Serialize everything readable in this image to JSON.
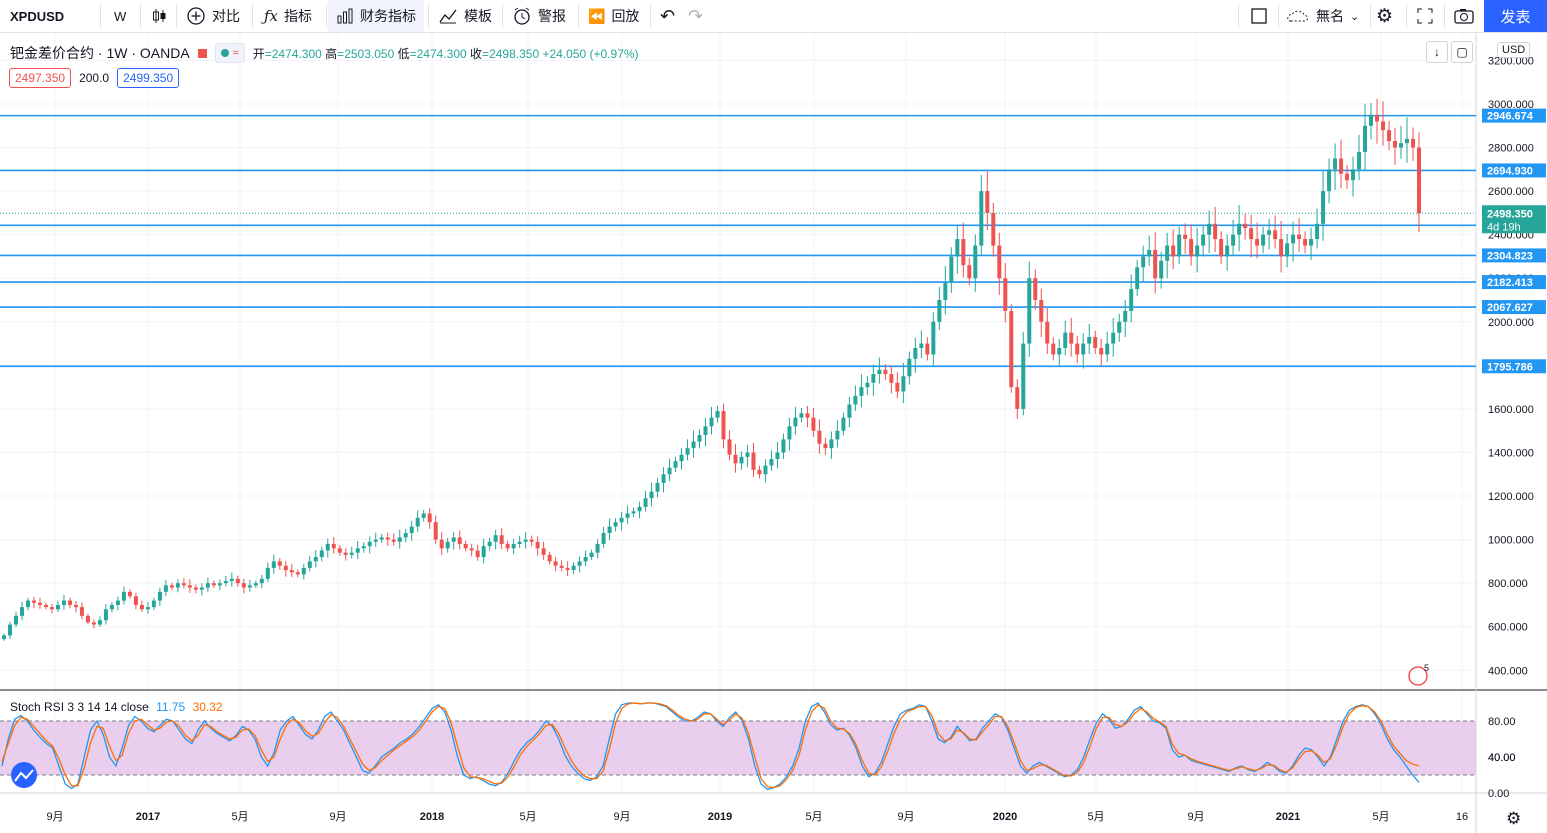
{
  "toolbar": {
    "symbol": "XPDUSD",
    "interval": "W",
    "compare": "对比",
    "indicators": "指标",
    "fin_indicators": "财务指标",
    "templates": "模板",
    "alert": "警报",
    "replay": "回放",
    "layout_name": "無名",
    "publish": "发表"
  },
  "legend": {
    "title": "钯金差价合约 · 1W · OANDA",
    "open_label": "开",
    "open": "2474.300",
    "high_label": "高",
    "high": "2503.050",
    "low_label": "低",
    "low": "2474.300",
    "close_label": "收",
    "close": "2498.350",
    "change": "+24.050 (+0.97%)"
  },
  "bidask": {
    "bid": "2497.350",
    "spread": "200.0",
    "ask": "2499.350"
  },
  "currency": "USD",
  "indicator_legend": {
    "name": "Stoch RSI 3 3 14 14 close",
    "k": "11.75",
    "d": "30.32"
  },
  "colors": {
    "up": "#26a69a",
    "down": "#ef5350",
    "hline": "#2196f3",
    "k_line": "#2196f3",
    "d_line": "#ff6d00",
    "band": "#e1bee7"
  },
  "chart_data": [
    {
      "type": "candlestick",
      "title": "XPDUSD",
      "y_axis_labels": [
        "3200.000",
        "3000.000",
        "2800.000",
        "2600.000",
        "2400.000",
        "2200.000",
        "2000.000",
        "1800.000",
        "1600.000",
        "1400.000",
        "1200.000",
        "1000.000",
        "800.000",
        "600.000",
        "400.000"
      ],
      "ylim": [
        300,
        3200
      ],
      "x_ticks": [
        "9月",
        "2017",
        "5月",
        "9月",
        "2018",
        "5月",
        "9月",
        "2019",
        "5月",
        "9月",
        "2020",
        "5月",
        "9月",
        "2021",
        "5月",
        "16"
      ],
      "horizontal_levels": [
        2946.674,
        2694.93,
        2443.197,
        2304.823,
        2182.413,
        2067.627,
        1795.786
      ],
      "last_price": 2498.35,
      "countdown": "4d 19h",
      "candles_close_weekly": [
        560,
        610,
        650,
        690,
        720,
        710,
        700,
        690,
        680,
        700,
        720,
        700,
        690,
        650,
        620,
        610,
        630,
        680,
        700,
        720,
        760,
        740,
        700,
        680,
        690,
        720,
        760,
        790,
        780,
        800,
        790,
        780,
        770,
        780,
        800,
        790,
        800,
        810,
        820,
        800,
        780,
        790,
        800,
        820,
        870,
        900,
        880,
        860,
        850,
        840,
        870,
        900,
        920,
        950,
        980,
        960,
        940,
        930,
        940,
        960,
        970,
        990,
        1000,
        1010,
        1000,
        990,
        1010,
        1030,
        1060,
        1100,
        1120,
        1080,
        1000,
        960,
        990,
        1010,
        980,
        960,
        950,
        920,
        970,
        990,
        1020,
        980,
        960,
        980,
        990,
        1000,
        990,
        960,
        930,
        900,
        880,
        870,
        860,
        880,
        900,
        920,
        940,
        980,
        1030,
        1060,
        1080,
        1100,
        1120,
        1130,
        1150,
        1190,
        1220,
        1260,
        1300,
        1330,
        1360,
        1390,
        1420,
        1450,
        1480,
        1520,
        1560,
        1590,
        1460,
        1390,
        1350,
        1380,
        1400,
        1320,
        1300,
        1340,
        1370,
        1400,
        1460,
        1520,
        1560,
        1580,
        1560,
        1500,
        1440,
        1420,
        1460,
        1500,
        1560,
        1620,
        1660,
        1700,
        1720,
        1760,
        1780,
        1760,
        1720,
        1680,
        1750,
        1830,
        1880,
        1900,
        1850,
        2000,
        2100,
        2180,
        2300,
        2380,
        2260,
        2200,
        2350,
        2600,
        2500,
        2350,
        2200,
        2050,
        1700,
        1600,
        1900,
        2200,
        2100,
        2000,
        1900,
        1850,
        1880,
        1950,
        1900,
        1850,
        1900,
        1930,
        1880,
        1850,
        1900,
        1950,
        2000,
        2050,
        2150,
        2250,
        2300,
        2330,
        2200,
        2280,
        2350,
        2300,
        2400,
        2380,
        2300,
        2350,
        2400,
        2450,
        2380,
        2300,
        2350,
        2400,
        2450,
        2430,
        2380,
        2350,
        2400,
        2420,
        2380,
        2300,
        2360,
        2400,
        2380,
        2350,
        2380,
        2450,
        2600,
        2700,
        2750,
        2680,
        2650,
        2700,
        2780,
        2900,
        2950,
        2920,
        2880,
        2830,
        2800,
        2820,
        2840,
        2800,
        2498
      ]
    },
    {
      "type": "line",
      "title": "Stoch RSI 3 3 14 14 close",
      "y_axis_labels": [
        "80.00",
        "40.00",
        "0.00"
      ],
      "ylim": [
        0,
        100
      ],
      "band": [
        20,
        80
      ],
      "series": [
        {
          "name": "K",
          "values": [
            30,
            60,
            82,
            86,
            80,
            70,
            62,
            55,
            50,
            30,
            10,
            5,
            10,
            40,
            70,
            80,
            65,
            40,
            30,
            50,
            75,
            85,
            80,
            72,
            68,
            75,
            82,
            80,
            70,
            60,
            55,
            70,
            80,
            72,
            66,
            62,
            58,
            64,
            74,
            70,
            60,
            40,
            30,
            45,
            70,
            80,
            85,
            75,
            65,
            60,
            70,
            85,
            90,
            80,
            70,
            55,
            40,
            25,
            22,
            30,
            40,
            45,
            50,
            56,
            60,
            66,
            74,
            84,
            94,
            98,
            90,
            70,
            40,
            20,
            16,
            18,
            14,
            10,
            8,
            12,
            22,
            36,
            48,
            56,
            62,
            70,
            80,
            74,
            60,
            42,
            30,
            22,
            16,
            14,
            18,
            30,
            60,
            88,
            98,
            100,
            100,
            99,
            100,
            100,
            98,
            96,
            90,
            84,
            80,
            80,
            84,
            90,
            88,
            80,
            74,
            84,
            90,
            80,
            60,
            30,
            10,
            4,
            6,
            10,
            18,
            30,
            50,
            80,
            96,
            100,
            90,
            76,
            70,
            72,
            64,
            50,
            30,
            18,
            22,
            34,
            54,
            74,
            88,
            92,
            94,
            98,
            96,
            80,
            60,
            56,
            62,
            74,
            66,
            58,
            60,
            72,
            80,
            88,
            84,
            70,
            50,
            30,
            22,
            30,
            34,
            30,
            26,
            22,
            18,
            20,
            26,
            40,
            60,
            78,
            88,
            82,
            72,
            74,
            82,
            92,
            96,
            88,
            80,
            78,
            72,
            48,
            40,
            42,
            36,
            34,
            32,
            30,
            28,
            26,
            24,
            28,
            30,
            26,
            24,
            28,
            34,
            30,
            24,
            22,
            30,
            42,
            50,
            48,
            40,
            30,
            40,
            60,
            80,
            92,
            96,
            98,
            96,
            88,
            76,
            60,
            48,
            40,
            30,
            20,
            11.75
          ]
        },
        {
          "name": "D",
          "values": [
            35,
            55,
            75,
            84,
            82,
            74,
            66,
            58,
            52,
            38,
            20,
            8,
            8,
            28,
            56,
            74,
            72,
            52,
            36,
            42,
            66,
            80,
            82,
            76,
            70,
            72,
            79,
            80,
            74,
            64,
            58,
            64,
            76,
            74,
            68,
            64,
            60,
            62,
            70,
            71,
            64,
            48,
            35,
            40,
            60,
            76,
            82,
            78,
            69,
            63,
            66,
            78,
            87,
            84,
            74,
            60,
            46,
            32,
            25,
            28,
            36,
            42,
            48,
            53,
            58,
            63,
            70,
            80,
            90,
            96,
            94,
            78,
            52,
            28,
            18,
            17,
            16,
            13,
            10,
            11,
            18,
            30,
            43,
            52,
            59,
            66,
            75,
            76,
            66,
            50,
            36,
            26,
            19,
            16,
            16,
            24,
            48,
            78,
            94,
            99,
            100,
            99,
            100,
            100,
            99,
            97,
            92,
            86,
            82,
            80,
            82,
            88,
            88,
            82,
            76,
            81,
            88,
            83,
            66,
            40,
            16,
            7,
            6,
            8,
            15,
            25,
            42,
            70,
            90,
            98,
            94,
            80,
            72,
            71,
            66,
            54,
            36,
            22,
            20,
            29,
            46,
            66,
            82,
            90,
            93,
            96,
            96,
            86,
            66,
            58,
            60,
            70,
            67,
            60,
            59,
            68,
            76,
            85,
            85,
            74,
            56,
            36,
            25,
            27,
            31,
            31,
            27,
            23,
            19,
            19,
            23,
            34,
            52,
            72,
            84,
            84,
            76,
            74,
            79,
            88,
            94,
            90,
            83,
            79,
            74,
            54,
            44,
            42,
            38,
            35,
            33,
            31,
            29,
            27,
            25,
            27,
            29,
            27,
            25,
            27,
            31,
            31,
            26,
            23,
            28,
            38,
            46,
            47,
            42,
            34,
            38,
            54,
            74,
            88,
            95,
            97,
            96,
            90,
            80,
            65,
            52,
            44,
            36,
            32,
            30.32
          ]
        }
      ]
    }
  ]
}
